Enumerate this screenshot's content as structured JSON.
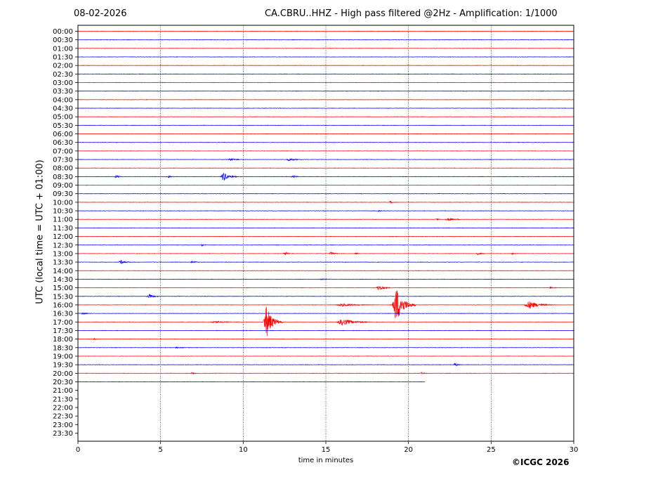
{
  "header": {
    "date": "08-02-2026",
    "title": "CA.CBRU..HHZ - High pass filtered @2Hz - Amplification: 1/1000"
  },
  "footer": {
    "copyright": "©ICGC 2026"
  },
  "chart_data": {
    "type": "helicorder",
    "title": "CA.CBRU..HHZ - High pass filtered @2Hz - Amplification: 1/1000",
    "xlabel": "time in minutes",
    "ylabel": "UTC (local time = UTC + 01:00)",
    "xlim": [
      0,
      30
    ],
    "x_ticks": [
      0,
      5,
      10,
      15,
      20,
      25,
      30
    ],
    "vertical_gridlines_at": [
      5,
      10,
      15,
      20,
      25
    ],
    "row_labels": [
      "00:00",
      "00:30",
      "01:00",
      "01:30",
      "02:00",
      "02:30",
      "03:00",
      "03:30",
      "04:00",
      "04:30",
      "05:00",
      "05:30",
      "06:00",
      "06:30",
      "07:00",
      "07:30",
      "08:00",
      "08:30",
      "09:00",
      "09:30",
      "10:00",
      "10:30",
      "11:00",
      "11:30",
      "12:00",
      "12:30",
      "13:00",
      "13:30",
      "14:00",
      "14:30",
      "15:00",
      "15:30",
      "16:00",
      "16:30",
      "17:00",
      "17:30",
      "18:00",
      "18:30",
      "19:00",
      "19:30",
      "20:00",
      "20:30",
      "21:00",
      "21:30",
      "22:00",
      "22:30",
      "23:00",
      "23:30"
    ],
    "trace_colors": [
      "#ff0000",
      "#0000ff"
    ],
    "data_end": {
      "row": "20:30",
      "minute": 21.0
    },
    "events": [
      {
        "row": "17:00",
        "minute": 11.4,
        "amplitude": 1.9,
        "duration": 1.0
      },
      {
        "row": "16:00",
        "minute": 19.25,
        "amplitude": 2.2,
        "duration": 1.2
      },
      {
        "row": "16:00",
        "minute": 27.3,
        "amplitude": 0.45,
        "duration": 1.6
      },
      {
        "row": "16:00",
        "minute": 16.0,
        "amplitude": 0.15,
        "duration": 2.0
      },
      {
        "row": "17:00",
        "minute": 16.0,
        "amplitude": 0.4,
        "duration": 1.8
      },
      {
        "row": "17:00",
        "minute": 8.3,
        "amplitude": 0.1,
        "duration": 1.5
      },
      {
        "row": "08:30",
        "minute": 8.8,
        "amplitude": 0.55,
        "duration": 0.8
      },
      {
        "row": "08:30",
        "minute": 2.3,
        "amplitude": 0.15,
        "duration": 0.5
      },
      {
        "row": "08:30",
        "minute": 5.5,
        "amplitude": 0.12,
        "duration": 0.5
      },
      {
        "row": "08:30",
        "minute": 13.0,
        "amplitude": 0.12,
        "duration": 0.5
      },
      {
        "row": "07:30",
        "minute": 9.2,
        "amplitude": 0.15,
        "duration": 0.8
      },
      {
        "row": "07:30",
        "minute": 12.8,
        "amplitude": 0.15,
        "duration": 1.0
      },
      {
        "row": "10:00",
        "minute": 18.9,
        "amplitude": 0.15,
        "duration": 0.4
      },
      {
        "row": "10:30",
        "minute": 18.2,
        "amplitude": 0.08,
        "duration": 0.4
      },
      {
        "row": "11:00",
        "minute": 22.4,
        "amplitude": 0.15,
        "duration": 1.2
      },
      {
        "row": "11:00",
        "minute": 21.7,
        "amplitude": 0.1,
        "duration": 0.3
      },
      {
        "row": "12:30",
        "minute": 7.5,
        "amplitude": 0.1,
        "duration": 0.3
      },
      {
        "row": "13:00",
        "minute": 12.5,
        "amplitude": 0.22,
        "duration": 0.5
      },
      {
        "row": "13:00",
        "minute": 15.3,
        "amplitude": 0.22,
        "duration": 0.5
      },
      {
        "row": "13:00",
        "minute": 16.8,
        "amplitude": 0.12,
        "duration": 0.3
      },
      {
        "row": "13:00",
        "minute": 24.2,
        "amplitude": 0.15,
        "duration": 0.6
      },
      {
        "row": "13:00",
        "minute": 26.3,
        "amplitude": 0.08,
        "duration": 0.5
      },
      {
        "row": "13:30",
        "minute": 2.6,
        "amplitude": 0.22,
        "duration": 0.7
      },
      {
        "row": "13:30",
        "minute": 6.9,
        "amplitude": 0.15,
        "duration": 0.5
      },
      {
        "row": "14:30",
        "minute": 14.7,
        "amplitude": 0.06,
        "duration": 0.6
      },
      {
        "row": "15:00",
        "minute": 18.2,
        "amplitude": 0.3,
        "duration": 0.8
      },
      {
        "row": "15:00",
        "minute": 28.6,
        "amplitude": 0.15,
        "duration": 0.4
      },
      {
        "row": "15:30",
        "minute": 4.3,
        "amplitude": 0.3,
        "duration": 0.6
      },
      {
        "row": "16:30",
        "minute": 0.3,
        "amplitude": 0.12,
        "duration": 0.5
      },
      {
        "row": "18:00",
        "minute": 1.0,
        "amplitude": 0.08,
        "duration": 0.3
      },
      {
        "row": "18:30",
        "minute": 6.0,
        "amplitude": 0.06,
        "duration": 1.0
      },
      {
        "row": "19:30",
        "minute": 22.8,
        "amplitude": 0.25,
        "duration": 0.4
      },
      {
        "row": "20:00",
        "minute": 6.9,
        "amplitude": 0.15,
        "duration": 0.4
      },
      {
        "row": "20:00",
        "minute": 20.8,
        "amplitude": 0.08,
        "duration": 0.4
      }
    ]
  }
}
